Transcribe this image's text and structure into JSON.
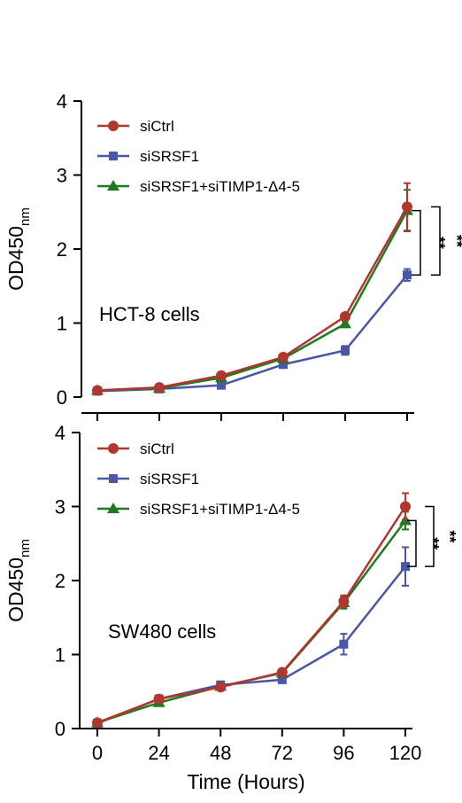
{
  "figure": {
    "x_axis_title": "Time (Hours)"
  },
  "chart_data": [
    {
      "type": "line",
      "panel_label": "HCT-8 cells",
      "ylabel": "OD450",
      "ylabel_subscript": "nm",
      "ylim": [
        0,
        4
      ],
      "yticks": [
        "0",
        "1",
        "2",
        "3",
        "4"
      ],
      "x": [
        0,
        24,
        48,
        72,
        96,
        120
      ],
      "xlim": [
        0,
        120
      ],
      "xticks_shown": false,
      "legend_position": "top-left",
      "series": [
        {
          "name": "siCtrl",
          "color": "#b0362f",
          "marker": "circle",
          "values": [
            0.09,
            0.13,
            0.29,
            0.54,
            1.09,
            2.57
          ],
          "errors": [
            0.02,
            0.02,
            0.03,
            0.03,
            0.04,
            0.32
          ]
        },
        {
          "name": "siSRSF1",
          "color": "#4a56a6",
          "marker": "square",
          "values": [
            0.08,
            0.11,
            0.16,
            0.44,
            0.63,
            1.65
          ],
          "errors": [
            0.02,
            0.02,
            0.02,
            0.03,
            0.06,
            0.08
          ]
        },
        {
          "name": "siSRSF1+siTIMP1-Δ4-5",
          "color": "#1f7a1f",
          "marker": "triangle",
          "values": [
            0.09,
            0.12,
            0.26,
            0.52,
            0.99,
            2.52
          ],
          "errors": [
            0.02,
            0.02,
            0.03,
            0.03,
            0.04,
            0.28
          ]
        }
      ],
      "significance": [
        "**",
        "**"
      ]
    },
    {
      "type": "line",
      "panel_label": "SW480 cells",
      "ylabel": "OD450",
      "ylabel_subscript": "nm",
      "ylim": [
        0,
        4
      ],
      "yticks": [
        "0",
        "1",
        "2",
        "3",
        "4"
      ],
      "x": [
        0,
        24,
        48,
        72,
        96,
        120
      ],
      "xlim": [
        0,
        120
      ],
      "xticks": [
        "0",
        "24",
        "48",
        "72",
        "96",
        "120"
      ],
      "xticks_shown": true,
      "xlabel": "Time (Hours)",
      "legend_position": "top-left",
      "series": [
        {
          "name": "siCtrl",
          "color": "#b0362f",
          "marker": "circle",
          "values": [
            0.08,
            0.4,
            0.56,
            0.76,
            1.72,
            3.0
          ],
          "errors": [
            0.02,
            0.03,
            0.03,
            0.03,
            0.08,
            0.18
          ]
        },
        {
          "name": "siSRSF1",
          "color": "#4a56a6",
          "marker": "square",
          "values": [
            0.07,
            0.4,
            0.59,
            0.66,
            1.14,
            2.19
          ],
          "errors": [
            0.02,
            0.03,
            0.03,
            0.03,
            0.14,
            0.26
          ]
        },
        {
          "name": "siSRSF1+siTIMP1-Δ4-5",
          "color": "#1f7a1f",
          "marker": "triangle",
          "values": [
            0.08,
            0.35,
            0.57,
            0.75,
            1.7,
            2.81
          ],
          "errors": [
            0.02,
            0.03,
            0.03,
            0.03,
            0.08,
            0.12
          ]
        }
      ],
      "significance": [
        "**",
        "**"
      ]
    }
  ]
}
